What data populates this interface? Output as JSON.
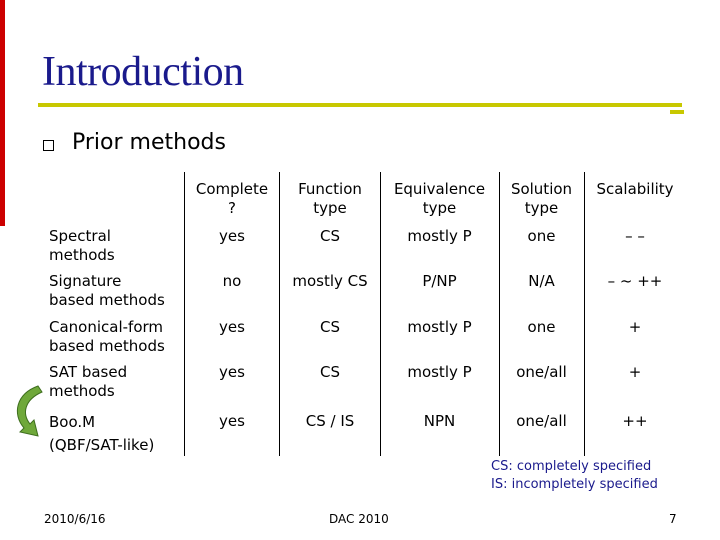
{
  "slide": {
    "title": "Introduction",
    "bullet": "Prior methods"
  },
  "table": {
    "headers": [
      [
        "Complete",
        "?"
      ],
      [
        "Function",
        "type"
      ],
      [
        "Equivalence",
        "type"
      ],
      [
        "Solution",
        "type"
      ],
      [
        "Scalability",
        ""
      ]
    ],
    "rows": [
      {
        "label": [
          "Spectral",
          "methods"
        ],
        "cells": [
          "yes",
          "CS",
          "mostly P",
          "one",
          "– –"
        ]
      },
      {
        "label": [
          "Signature",
          "based methods"
        ],
        "cells": [
          "no",
          "mostly CS",
          "P/NP",
          "N/A",
          "– ~ ++"
        ]
      },
      {
        "label": [
          "Canonical-form",
          "based methods"
        ],
        "cells": [
          "yes",
          "CS",
          "mostly P",
          "one",
          "+"
        ]
      },
      {
        "label": [
          "SAT based",
          "methods"
        ],
        "cells": [
          "yes",
          "CS",
          "mostly P",
          "one/all",
          "+"
        ]
      },
      {
        "label": [
          "Boo.M",
          "(QBF/SAT-like)"
        ],
        "cells": [
          "yes",
          "CS / IS",
          "NPN",
          "one/all",
          "++"
        ]
      }
    ]
  },
  "notes": [
    "CS: completely specified",
    "IS:  incompletely specified"
  ],
  "footer": {
    "date": "2010/6/16",
    "venue": "DAC 2010",
    "page": "7"
  },
  "colors": {
    "title": "#1a1a8c",
    "rule": "#c8c800",
    "accent_bar": "#cc0000",
    "arrow": "#6fa83a"
  }
}
